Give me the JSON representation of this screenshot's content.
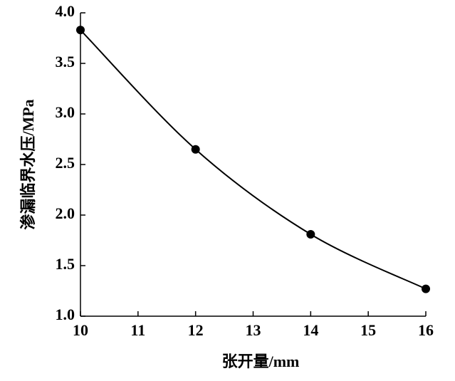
{
  "chart_data": {
    "type": "line",
    "x_label": "张开量/mm",
    "y_label": "渗漏临界水压/MPa",
    "x": [
      10,
      12,
      14,
      16
    ],
    "series": [
      {
        "color": "#000000",
        "values": [
          3.83,
          2.65,
          1.81,
          1.27
        ]
      }
    ],
    "xlim": [
      10,
      16
    ],
    "xticks": [
      10,
      11,
      12,
      13,
      14,
      15,
      16
    ],
    "ylim": [
      1.0,
      4.0
    ],
    "yticks": [
      {
        "value": 1.0,
        "label": "1.0"
      },
      1.5,
      {
        "value": 2.0,
        "label": "2.0"
      },
      2.5,
      {
        "value": 3.0,
        "label": "3.0"
      },
      3.5,
      {
        "value": 4.0,
        "label": "4.0"
      }
    ],
    "grid": false
  }
}
